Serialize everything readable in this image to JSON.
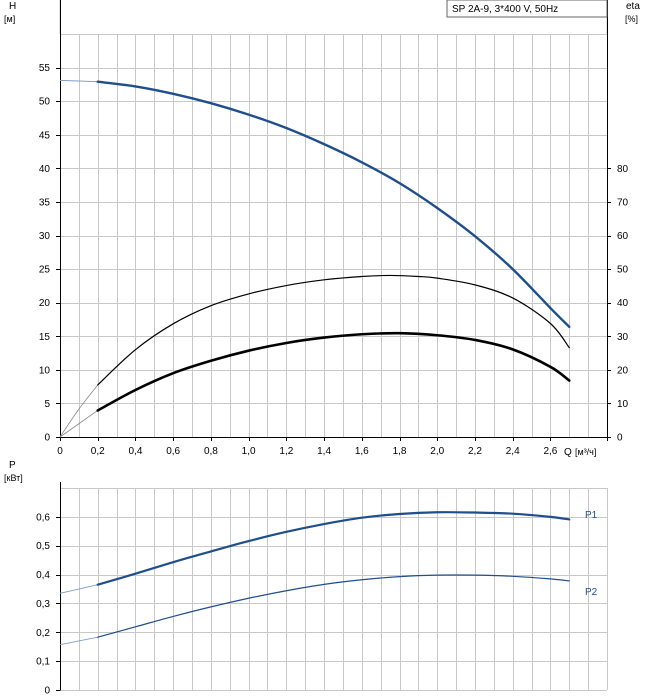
{
  "chart_data": [
    {
      "type": "line",
      "title": "SP 2A-9, 3*400 V, 50Hz",
      "left_axis": {
        "label": "H",
        "unit": "[м]",
        "ylim": [
          0,
          60
        ],
        "ticks": [
          0,
          5,
          10,
          15,
          20,
          25,
          30,
          35,
          40,
          45,
          50,
          55
        ]
      },
      "right_axis": {
        "label": "eta",
        "unit": "[%]",
        "ylim": [
          0,
          120
        ],
        "ticks": [
          0,
          10,
          20,
          30,
          40,
          50,
          60,
          70,
          80
        ]
      },
      "x_axis": {
        "label": "Q",
        "unit": "[м³/ч]",
        "xlim": [
          0,
          2.9
        ],
        "ticks": [
          "0",
          "0,2",
          "0,4",
          "0,6",
          "0,8",
          "1,0",
          "1,2",
          "1,4",
          "1,6",
          "1,8",
          "2,0",
          "2,2",
          "2,4",
          "2,6"
        ],
        "tick_values": [
          0,
          0.2,
          0.4,
          0.6,
          0.8,
          1.0,
          1.2,
          1.4,
          1.6,
          1.8,
          2.0,
          2.2,
          2.4,
          2.6
        ]
      },
      "grid": true,
      "series": [
        {
          "role": "H",
          "axis": "left",
          "color": "#1f4e8c",
          "ext_x": [
            0,
            0.2
          ],
          "ext_y": [
            53.1,
            52.9
          ],
          "x": [
            0.2,
            0.4,
            0.6,
            0.8,
            1.0,
            1.2,
            1.4,
            1.6,
            1.8,
            2.0,
            2.2,
            2.4,
            2.6,
            2.7
          ],
          "y": [
            52.9,
            52.2,
            51.1,
            49.7,
            48.0,
            46.0,
            43.6,
            40.9,
            37.8,
            34.1,
            29.9,
            25.0,
            19.2,
            16.4
          ]
        },
        {
          "role": "eta-outer",
          "axis": "right",
          "color": "#000000",
          "ext_x": [
            0,
            0.1,
            0.2
          ],
          "ext_y": [
            0,
            8.3,
            15.5
          ],
          "x": [
            0.2,
            0.4,
            0.6,
            0.8,
            1.0,
            1.2,
            1.4,
            1.6,
            1.75,
            1.9,
            2.0,
            2.2,
            2.4,
            2.6,
            2.7
          ],
          "y": [
            15.5,
            26.0,
            33.7,
            39.1,
            42.6,
            45.1,
            46.8,
            47.8,
            48.1,
            47.8,
            47.3,
            45.3,
            41.4,
            33.8,
            26.6
          ]
        },
        {
          "role": "eta-inner",
          "axis": "right",
          "color": "#000000",
          "ext_x": [
            0,
            0.2
          ],
          "ext_y": [
            0,
            7.9
          ],
          "x": [
            0.2,
            0.4,
            0.6,
            0.8,
            1.0,
            1.2,
            1.4,
            1.6,
            1.8,
            2.0,
            2.2,
            2.4,
            2.6,
            2.7
          ],
          "y": [
            7.9,
            14.0,
            19.0,
            22.7,
            25.7,
            28.0,
            29.6,
            30.6,
            30.9,
            30.3,
            28.9,
            26.1,
            20.9,
            16.8
          ]
        }
      ]
    },
    {
      "type": "line",
      "left_axis": {
        "label": "P",
        "unit": "[кВт]",
        "ylim": [
          0,
          0.7
        ],
        "ticks": [
          "0",
          "0,1",
          "0,2",
          "0,3",
          "0,4",
          "0,5",
          "0,6"
        ],
        "tick_values": [
          0,
          0.1,
          0.2,
          0.3,
          0.4,
          0.5,
          0.6
        ]
      },
      "xlim": [
        0,
        2.9
      ],
      "grid": true,
      "series": [
        {
          "name": "P1",
          "color": "#1f4e8c",
          "ext_x": [
            0,
            0.2
          ],
          "ext_y": [
            0.335,
            0.365
          ],
          "x": [
            0.2,
            0.4,
            0.6,
            0.8,
            1.0,
            1.2,
            1.4,
            1.6,
            1.8,
            2.0,
            2.2,
            2.4,
            2.6,
            2.7
          ],
          "y": [
            0.365,
            0.403,
            0.443,
            0.48,
            0.516,
            0.548,
            0.575,
            0.597,
            0.61,
            0.616,
            0.615,
            0.611,
            0.6,
            0.591
          ]
        },
        {
          "name": "P2",
          "color": "#1f4e8c",
          "ext_x": [
            0,
            0.2
          ],
          "ext_y": [
            0.157,
            0.183
          ],
          "x": [
            0.2,
            0.4,
            0.6,
            0.8,
            1.0,
            1.2,
            1.4,
            1.6,
            1.8,
            2.0,
            2.2,
            2.4,
            2.6,
            2.7
          ],
          "y": [
            0.183,
            0.219,
            0.255,
            0.288,
            0.318,
            0.344,
            0.366,
            0.382,
            0.393,
            0.398,
            0.398,
            0.394,
            0.385,
            0.378
          ]
        }
      ]
    }
  ]
}
